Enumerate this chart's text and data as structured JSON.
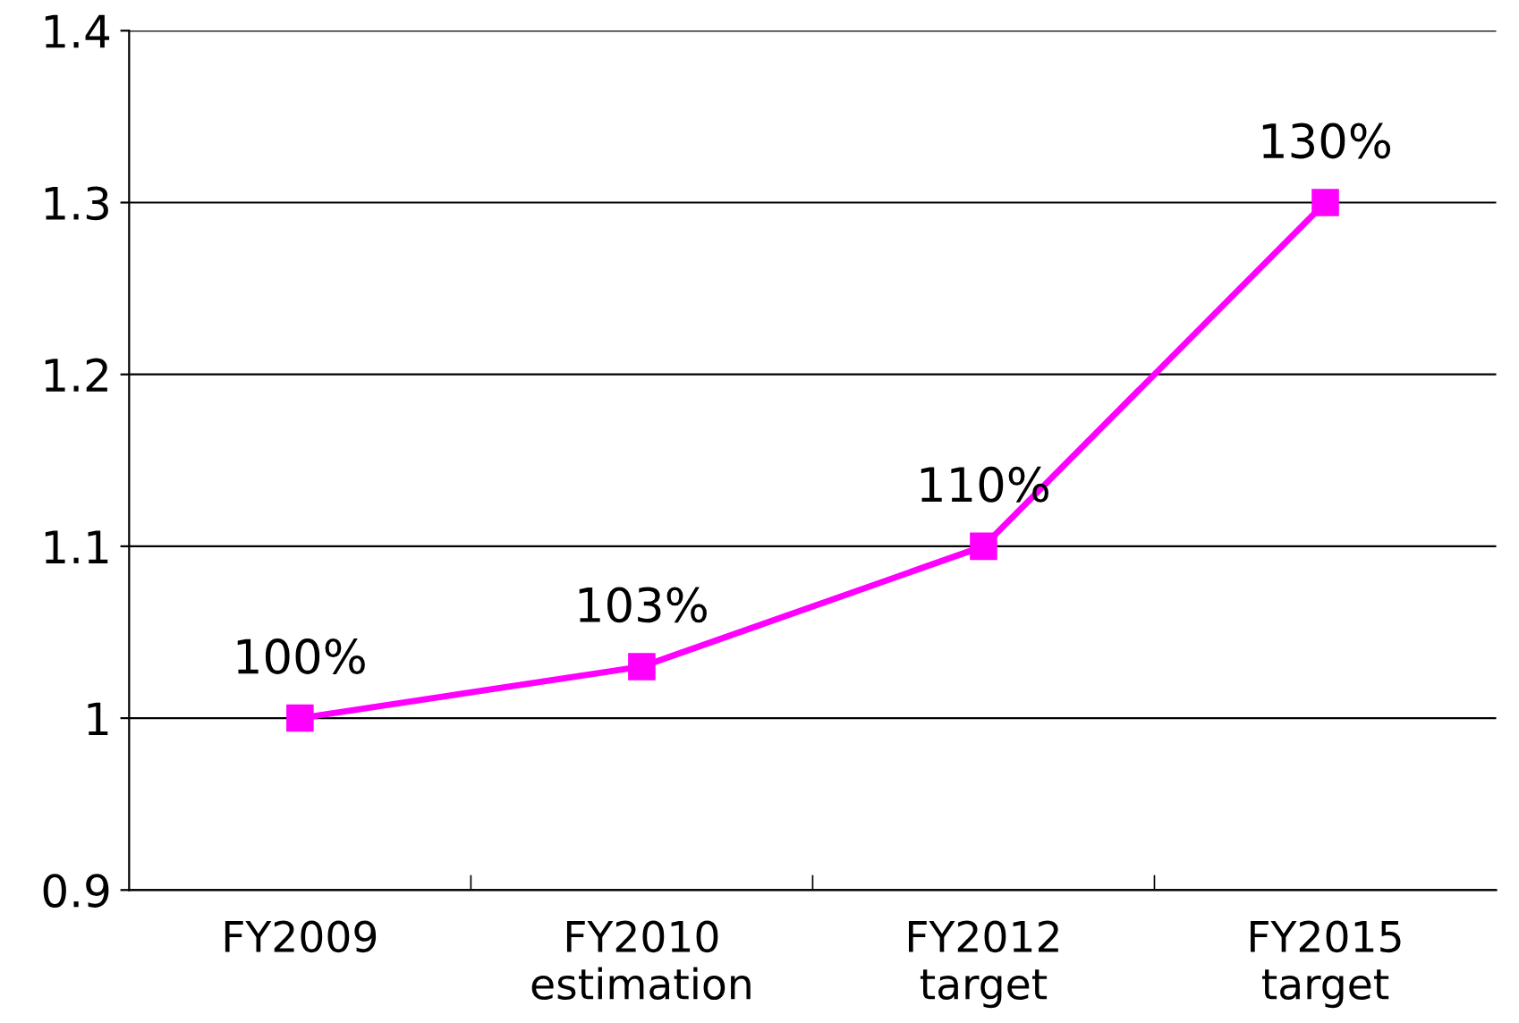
{
  "chart_data": {
    "type": "line",
    "categories": [
      "FY2009",
      "FY2010\nestimation",
      "FY2012\ntarget",
      "FY2015\ntarget"
    ],
    "series": [
      {
        "color": "#ff00ff",
        "values": [
          1.0,
          1.03,
          1.1,
          1.3
        ],
        "value_labels": [
          "100%",
          "103%",
          "110%",
          "130%"
        ]
      }
    ],
    "ylim": [
      0.9,
      1.4
    ],
    "yticks": [
      0.9,
      1,
      1.1,
      1.2,
      1.3,
      1.4
    ],
    "grid": "y",
    "marker": "square",
    "line_style": "solid"
  }
}
